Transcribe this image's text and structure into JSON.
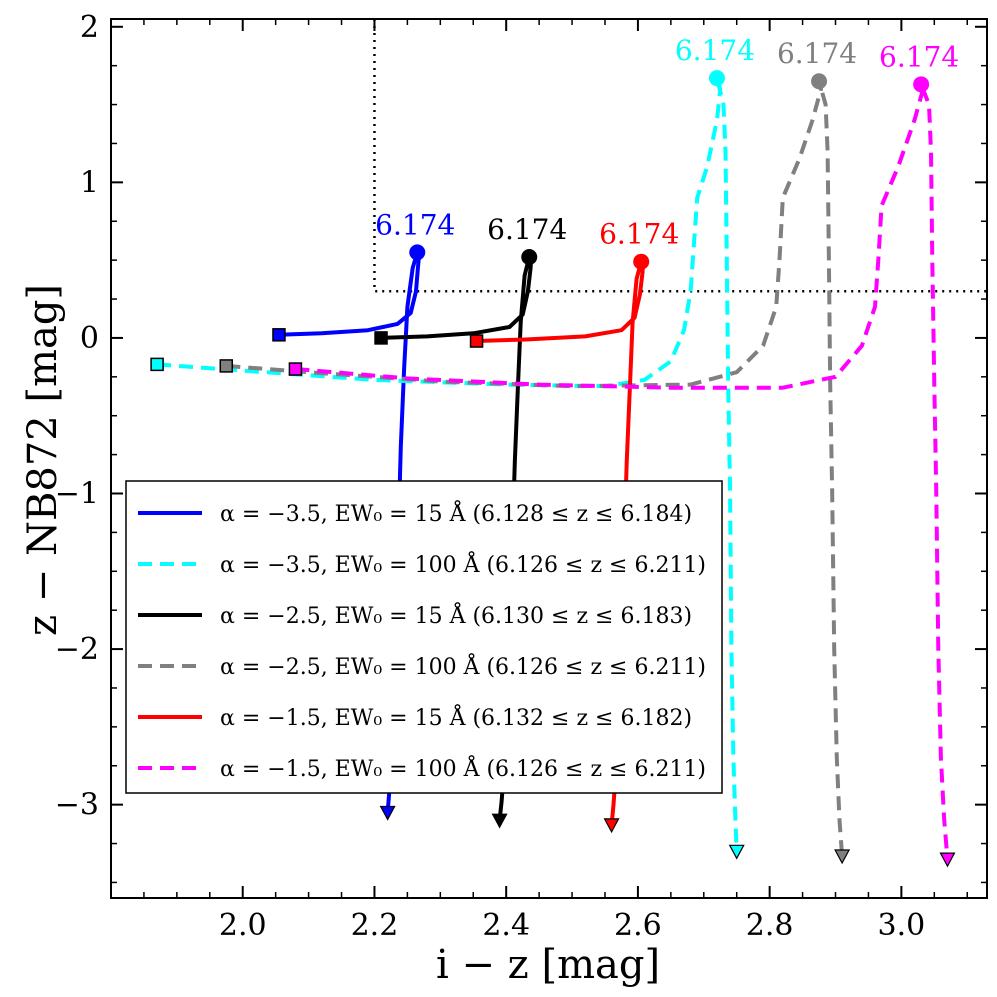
{
  "chart_data": {
    "type": "line",
    "xlabel": "i − z [mag]",
    "ylabel": "z − NB872 [mag]",
    "xlim": [
      1.8,
      3.13
    ],
    "ylim": [
      -3.6,
      2.05
    ],
    "x_ticks": [
      "2.0",
      "2.2",
      "2.4",
      "2.6",
      "2.8",
      "3.0"
    ],
    "x_tick_values": [
      2.0,
      2.2,
      2.4,
      2.6,
      2.8,
      3.0
    ],
    "y_ticks": [
      "2",
      "1",
      "0",
      "−1",
      "−2",
      "−3"
    ],
    "y_tick_values": [
      2,
      1,
      0,
      -1,
      -2,
      -3
    ],
    "selection_box": {
      "x_min": 2.2,
      "y_min": 0.3
    },
    "annotation_text": "6.174",
    "legend_position": "lower-left",
    "series": [
      {
        "name": "α = −3.5, EW₀ = 15 Å (6.128 ≤ z ≤ 6.184)",
        "color": "#0000ff",
        "style": "solid",
        "start": [
          2.055,
          0.02
        ],
        "peak": [
          2.265,
          0.55
        ],
        "end": [
          2.22,
          -3.05
        ],
        "points": [
          [
            2.055,
            0.02
          ],
          [
            2.12,
            0.03
          ],
          [
            2.19,
            0.05
          ],
          [
            2.235,
            0.09
          ],
          [
            2.255,
            0.16
          ],
          [
            2.263,
            0.3
          ],
          [
            2.266,
            0.45
          ],
          [
            2.268,
            0.54
          ],
          [
            2.265,
            0.55
          ],
          [
            2.258,
            0.45
          ],
          [
            2.25,
            0.2
          ],
          [
            2.245,
            -0.2
          ],
          [
            2.24,
            -0.7
          ],
          [
            2.236,
            -1.3
          ],
          [
            2.232,
            -2.0
          ],
          [
            2.228,
            -2.6
          ],
          [
            2.222,
            -2.95
          ],
          [
            2.22,
            -3.05
          ]
        ]
      },
      {
        "name": "α = −3.5, EW₀ = 100 Å (6.126 ≤ z ≤ 6.211)",
        "color": "#00ffff",
        "style": "dashed",
        "start": [
          1.87,
          -0.17
        ],
        "peak": [
          2.72,
          1.67
        ],
        "end": [
          2.75,
          -3.3
        ],
        "points": [
          [
            1.87,
            -0.17
          ],
          [
            2.0,
            -0.21
          ],
          [
            2.2,
            -0.27
          ],
          [
            2.4,
            -0.3
          ],
          [
            2.55,
            -0.31
          ],
          [
            2.61,
            -0.27
          ],
          [
            2.65,
            -0.15
          ],
          [
            2.67,
            0.05
          ],
          [
            2.68,
            0.3
          ],
          [
            2.685,
            0.6
          ],
          [
            2.69,
            0.9
          ],
          [
            2.705,
            1.1
          ],
          [
            2.72,
            1.4
          ],
          [
            2.725,
            1.6
          ],
          [
            2.72,
            1.67
          ],
          [
            2.73,
            1.5
          ],
          [
            2.733,
            1.2
          ],
          [
            2.735,
            0.5
          ],
          [
            2.737,
            -0.3
          ],
          [
            2.74,
            -1.0
          ],
          [
            2.742,
            -2.0
          ],
          [
            2.745,
            -2.7
          ],
          [
            2.748,
            -3.1
          ],
          [
            2.75,
            -3.3
          ]
        ]
      },
      {
        "name": "α = −2.5, EW₀ = 15 Å (6.130 ≤ z ≤ 6.183)",
        "color": "#000000",
        "style": "solid",
        "start": [
          2.21,
          0.0
        ],
        "peak": [
          2.435,
          0.52
        ],
        "end": [
          2.39,
          -3.1
        ],
        "points": [
          [
            2.21,
            0.0
          ],
          [
            2.28,
            0.01
          ],
          [
            2.35,
            0.03
          ],
          [
            2.405,
            0.07
          ],
          [
            2.425,
            0.15
          ],
          [
            2.433,
            0.3
          ],
          [
            2.437,
            0.45
          ],
          [
            2.438,
            0.52
          ],
          [
            2.435,
            0.52
          ],
          [
            2.428,
            0.4
          ],
          [
            2.422,
            0.1
          ],
          [
            2.418,
            -0.3
          ],
          [
            2.413,
            -0.8
          ],
          [
            2.408,
            -1.5
          ],
          [
            2.403,
            -2.2
          ],
          [
            2.398,
            -2.7
          ],
          [
            2.393,
            -2.98
          ],
          [
            2.39,
            -3.1
          ]
        ]
      },
      {
        "name": "α = −2.5, EW₀ = 100 Å (6.126 ≤ z ≤ 6.211)",
        "color": "#808080",
        "style": "dashed",
        "start": [
          1.975,
          -0.18
        ],
        "peak": [
          2.875,
          1.65
        ],
        "end": [
          2.91,
          -3.33
        ],
        "points": [
          [
            1.975,
            -0.18
          ],
          [
            2.1,
            -0.22
          ],
          [
            2.3,
            -0.28
          ],
          [
            2.5,
            -0.31
          ],
          [
            2.68,
            -0.3
          ],
          [
            2.75,
            -0.22
          ],
          [
            2.79,
            -0.05
          ],
          [
            2.81,
            0.2
          ],
          [
            2.815,
            0.5
          ],
          [
            2.82,
            0.9
          ],
          [
            2.845,
            1.15
          ],
          [
            2.865,
            1.4
          ],
          [
            2.878,
            1.6
          ],
          [
            2.875,
            1.65
          ],
          [
            2.885,
            1.5
          ],
          [
            2.888,
            1.2
          ],
          [
            2.89,
            0.5
          ],
          [
            2.892,
            -0.3
          ],
          [
            2.895,
            -1.0
          ],
          [
            2.898,
            -2.0
          ],
          [
            2.902,
            -2.7
          ],
          [
            2.906,
            -3.1
          ],
          [
            2.91,
            -3.33
          ]
        ]
      },
      {
        "name": "α = −1.5, EW₀ = 15 Å (6.132 ≤ z ≤ 6.182)",
        "color": "#ff0000",
        "style": "solid",
        "start": [
          2.355,
          -0.02
        ],
        "peak": [
          2.605,
          0.49
        ],
        "end": [
          2.56,
          -3.13
        ],
        "points": [
          [
            2.355,
            -0.02
          ],
          [
            2.43,
            -0.01
          ],
          [
            2.52,
            0.01
          ],
          [
            2.575,
            0.05
          ],
          [
            2.595,
            0.13
          ],
          [
            2.603,
            0.28
          ],
          [
            2.607,
            0.42
          ],
          [
            2.608,
            0.49
          ],
          [
            2.605,
            0.49
          ],
          [
            2.598,
            0.38
          ],
          [
            2.592,
            0.1
          ],
          [
            2.588,
            -0.3
          ],
          [
            2.583,
            -0.8
          ],
          [
            2.578,
            -1.5
          ],
          [
            2.573,
            -2.2
          ],
          [
            2.568,
            -2.7
          ],
          [
            2.563,
            -3.0
          ],
          [
            2.56,
            -3.13
          ]
        ]
      },
      {
        "name": "α = −1.5, EW₀ = 100 Å (6.126 ≤ z ≤ 6.211)",
        "color": "#ff00ff",
        "style": "dashed",
        "start": [
          2.08,
          -0.2
        ],
        "peak": [
          3.03,
          1.63
        ],
        "end": [
          3.07,
          -3.35
        ],
        "points": [
          [
            2.08,
            -0.2
          ],
          [
            2.25,
            -0.26
          ],
          [
            2.45,
            -0.3
          ],
          [
            2.65,
            -0.32
          ],
          [
            2.82,
            -0.32
          ],
          [
            2.9,
            -0.25
          ],
          [
            2.94,
            -0.05
          ],
          [
            2.96,
            0.2
          ],
          [
            2.965,
            0.5
          ],
          [
            2.97,
            0.85
          ],
          [
            2.995,
            1.1
          ],
          [
            3.02,
            1.4
          ],
          [
            3.033,
            1.6
          ],
          [
            3.03,
            1.63
          ],
          [
            3.042,
            1.5
          ],
          [
            3.045,
            1.2
          ],
          [
            3.047,
            0.5
          ],
          [
            3.05,
            -0.3
          ],
          [
            3.053,
            -1.0
          ],
          [
            3.056,
            -2.0
          ],
          [
            3.06,
            -2.7
          ],
          [
            3.065,
            -3.1
          ],
          [
            3.07,
            -3.35
          ]
        ]
      }
    ]
  }
}
